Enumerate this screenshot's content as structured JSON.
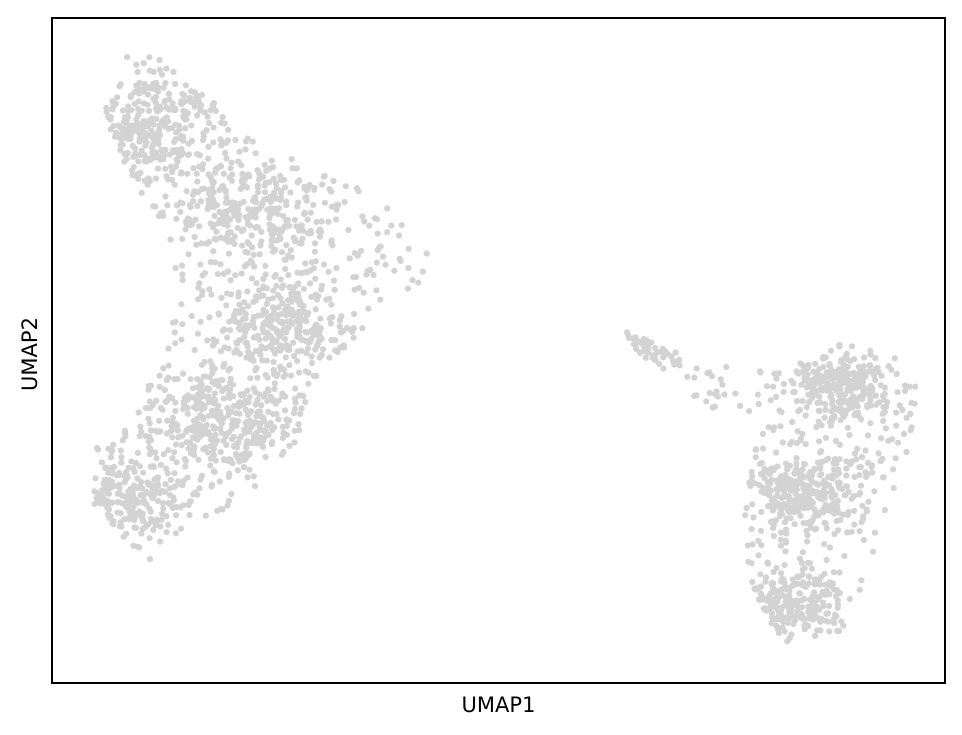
{
  "chart_data": {
    "type": "scatter",
    "title": "",
    "xlabel": "UMAP1",
    "ylabel": "UMAP2",
    "xlim": [
      0,
      100
    ],
    "ylim": [
      0,
      100
    ],
    "xticks": [],
    "yticks": [],
    "grid": false,
    "legend": "none",
    "marker_color": "#d3d3d3",
    "axis_color": "#000000",
    "background_color": "#ffffff",
    "clusters": [
      {
        "shape": "left cluster",
        "outline": [
          [
            6,
            88
          ],
          [
            9,
            96
          ],
          [
            15,
            92
          ],
          [
            21,
            83
          ],
          [
            30,
            78
          ],
          [
            36,
            74
          ],
          [
            43,
            65
          ],
          [
            41,
            60
          ],
          [
            36,
            55
          ],
          [
            31,
            48
          ],
          [
            28,
            40
          ],
          [
            27,
            34
          ],
          [
            24,
            30
          ],
          [
            20,
            25
          ],
          [
            15,
            24
          ],
          [
            11,
            18
          ],
          [
            8,
            22
          ],
          [
            4,
            28
          ],
          [
            5,
            36
          ],
          [
            9,
            43
          ],
          [
            13,
            50
          ],
          [
            14,
            58
          ],
          [
            13,
            67
          ],
          [
            9,
            76
          ],
          [
            6,
            84
          ]
        ],
        "density_centers": [
          [
            11,
            83
          ],
          [
            22,
            71
          ],
          [
            26,
            54
          ],
          [
            8,
            28
          ],
          [
            19,
            40
          ]
        ]
      },
      {
        "shape": "right cluster",
        "outline": [
          [
            64,
            53
          ],
          [
            73,
            48
          ],
          [
            81,
            47
          ],
          [
            88,
            51
          ],
          [
            94,
            50
          ],
          [
            97,
            45
          ],
          [
            96,
            36
          ],
          [
            94,
            27
          ],
          [
            92,
            17
          ],
          [
            89,
            8
          ],
          [
            82,
            6
          ],
          [
            79,
            12
          ],
          [
            77,
            22
          ],
          [
            78,
            30
          ],
          [
            79,
            38
          ],
          [
            73,
            42
          ],
          [
            66,
            49
          ]
        ],
        "density_centers": [
          [
            64,
            52
          ],
          [
            88,
            45
          ],
          [
            84,
            28
          ],
          [
            83,
            12
          ]
        ]
      }
    ]
  }
}
